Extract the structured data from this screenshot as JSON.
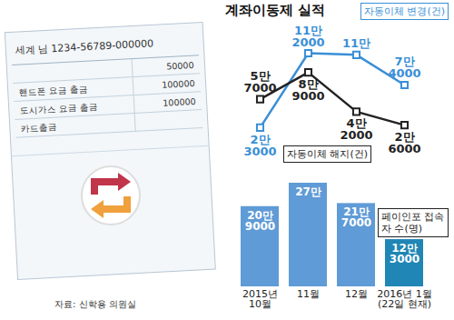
{
  "chart_data": {
    "type": "line",
    "title": "계좌이동제 실적",
    "source": "자료: 신학용 의원실",
    "categories": [
      "2015년 10월",
      "11월",
      "12월",
      "2016년 1월 (22일 현재)"
    ],
    "data_labels": true,
    "tick_labels": "x",
    "series": [
      {
        "name": "자동이체 변경(건)",
        "type": "line",
        "color": "#3a8fd6",
        "marker": "square",
        "values": [
          23000,
          112000,
          110000,
          74000
        ],
        "value_labels": [
          "2만 3000",
          "11만 2000",
          "11만",
          "7만 4000"
        ]
      },
      {
        "name": "자동이체 해지(건)",
        "type": "line",
        "color": "#222222",
        "marker": "square",
        "values": [
          57000,
          89000,
          42000,
          26000
        ],
        "value_labels": [
          "5만 7000",
          "8만 9000",
          "4만 2000",
          "2만 6000"
        ]
      },
      {
        "name": "페이인포 접속자 수(명)",
        "type": "bar",
        "colors": [
          "#5f9bd6",
          "#5f9bd6",
          "#5f9bd6",
          "#1f86b5"
        ],
        "values": [
          209000,
          270000,
          217000,
          123000
        ],
        "value_labels": [
          "20만 9000",
          "27만",
          "21만 7000",
          "12만 3000"
        ]
      }
    ]
  },
  "passbook": {
    "header": "세계 님 1234-56789-000000",
    "rows": [
      {
        "amount": 50000
      },
      {
        "item": "핸드폰 요금 출금",
        "amount": 100000
      },
      {
        "item": "도시가스 요금 출금",
        "amount": 100000
      },
      {
        "item": "카드출금"
      }
    ]
  }
}
